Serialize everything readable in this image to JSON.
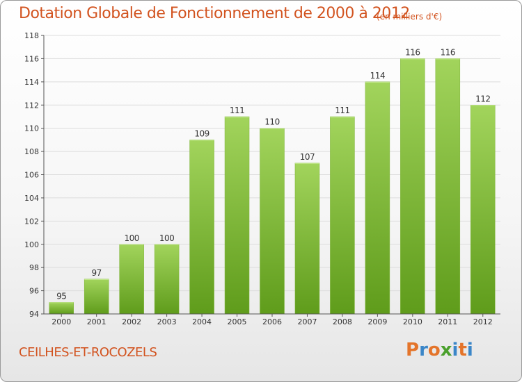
{
  "title": "Dotation Globale de Fonctionnement de 2000 à 2012",
  "subtitle": "(en milliers d'€)",
  "commune": "CEILHES-ET-ROCOZELS",
  "logo": {
    "text": "Proxiti",
    "letter_colors": [
      "#e4742a",
      "#3b86c8",
      "#e4742a",
      "#4aa02c",
      "#3b86c8",
      "#e4742a",
      "#3b86c8"
    ]
  },
  "colors": {
    "title": "#d2531f",
    "bar_light": "#a2d45c",
    "bar_dark": "#5f9c1b",
    "grid": "#dcdcdc",
    "axis": "#555555"
  },
  "chart_data": {
    "type": "bar",
    "categories": [
      "2000",
      "2001",
      "2002",
      "2003",
      "2004",
      "2005",
      "2006",
      "2007",
      "2008",
      "2009",
      "2010",
      "2011",
      "2012"
    ],
    "values": [
      95,
      97,
      100,
      100,
      109,
      111,
      110,
      107,
      111,
      114,
      116,
      116,
      112
    ],
    "data_labels": [
      "95",
      "97",
      "100",
      "100",
      "109",
      "111",
      "110",
      "107",
      "111",
      "114",
      "116",
      "116",
      "112"
    ],
    "ylim": [
      94,
      118
    ],
    "yticks": [
      94,
      96,
      98,
      100,
      102,
      104,
      106,
      108,
      110,
      112,
      114,
      116,
      118
    ],
    "ytick_labels": [
      "94",
      "96",
      "98",
      "100",
      "102",
      "104",
      "106",
      "108",
      "110",
      "112",
      "114",
      "116",
      "118"
    ],
    "xlabel": "",
    "ylabel": "",
    "grid": true,
    "legend": false
  }
}
